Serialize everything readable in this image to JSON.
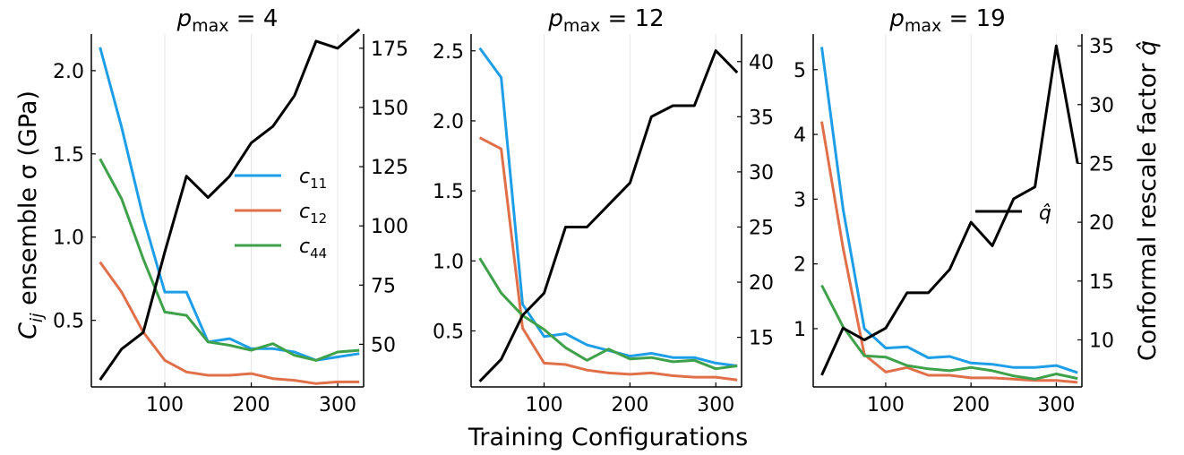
{
  "figure": {
    "xlabel": "Training Configurations",
    "ylabel_left": "C_ij ensemble σ (GPa)",
    "ylabel_right": "Conformal rescale factor q̂"
  },
  "legend": {
    "c11": "c11",
    "c12": "c12",
    "c44": "c44",
    "qhat": "q̂"
  },
  "colors": {
    "c11": "#1f9ee8",
    "c12": "#e0704a",
    "c44": "#3fa14a",
    "qhat": "#000000",
    "grid": "#e6e6e6"
  },
  "chart_data": [
    {
      "type": "line",
      "title": "p_max = 4",
      "title_base": "p",
      "title_sub": "max",
      "title_rest": " = 4",
      "x": [
        25,
        50,
        75,
        100,
        125,
        150,
        175,
        200,
        225,
        250,
        275,
        300,
        325
      ],
      "xlim": [
        15,
        330
      ],
      "xticks": [
        100,
        200,
        300
      ],
      "ylim_left": [
        0.1,
        2.22
      ],
      "yticks_left": [
        0.5,
        1.0,
        1.5,
        2.0
      ],
      "yticks_left_labels": [
        "0.5",
        "1.0",
        "1.5",
        "2.0"
      ],
      "ylim_right": [
        32,
        181
      ],
      "yticks_right": [
        50,
        75,
        100,
        125,
        150,
        175
      ],
      "series_left": [
        {
          "key": "c11",
          "values": [
            2.14,
            1.66,
            1.12,
            0.67,
            0.67,
            0.37,
            0.39,
            0.33,
            0.33,
            0.31,
            0.26,
            0.28,
            0.3
          ]
        },
        {
          "key": "c12",
          "values": [
            0.85,
            0.67,
            0.43,
            0.26,
            0.19,
            0.17,
            0.17,
            0.18,
            0.15,
            0.14,
            0.12,
            0.13,
            0.13
          ]
        },
        {
          "key": "c44",
          "values": [
            1.47,
            1.23,
            0.87,
            0.55,
            0.53,
            0.37,
            0.35,
            0.32,
            0.36,
            0.29,
            0.26,
            0.31,
            0.32
          ]
        }
      ],
      "series_right": [
        {
          "key": "qhat",
          "values": [
            35,
            48,
            55,
            89,
            121,
            112,
            121,
            135,
            142,
            155,
            178,
            175,
            183
          ]
        }
      ]
    },
    {
      "type": "line",
      "title": "p_max = 12",
      "title_base": "p",
      "title_sub": "max",
      "title_rest": " = 12",
      "x": [
        25,
        50,
        75,
        100,
        125,
        150,
        175,
        200,
        225,
        250,
        275,
        300,
        325
      ],
      "xlim": [
        15,
        330
      ],
      "xticks": [
        100,
        200,
        300
      ],
      "ylim_left": [
        0.1,
        2.62
      ],
      "yticks_left": [
        0.5,
        1.0,
        1.5,
        2.0,
        2.5
      ],
      "yticks_left_labels": [
        "0.5",
        "1.0",
        "1.5",
        "2.0",
        "2.5"
      ],
      "ylim_right": [
        10.5,
        42.5
      ],
      "yticks_right": [
        15,
        20,
        25,
        30,
        35,
        40
      ],
      "series_left": [
        {
          "key": "c11",
          "values": [
            2.52,
            2.31,
            0.69,
            0.46,
            0.48,
            0.4,
            0.36,
            0.32,
            0.34,
            0.31,
            0.31,
            0.27,
            0.25
          ]
        },
        {
          "key": "c12",
          "values": [
            1.88,
            1.8,
            0.52,
            0.27,
            0.26,
            0.22,
            0.2,
            0.19,
            0.2,
            0.18,
            0.17,
            0.17,
            0.15
          ]
        },
        {
          "key": "c44",
          "values": [
            1.02,
            0.77,
            0.61,
            0.51,
            0.38,
            0.29,
            0.37,
            0.3,
            0.31,
            0.28,
            0.29,
            0.23,
            0.25
          ]
        }
      ],
      "series_right": [
        {
          "key": "qhat",
          "values": [
            11,
            13,
            17,
            19,
            25,
            25,
            27,
            29,
            35,
            36,
            36,
            41,
            39
          ]
        }
      ]
    },
    {
      "type": "line",
      "title": "p_max = 19",
      "title_base": "p",
      "title_sub": "max",
      "title_rest": " = 19",
      "x": [
        25,
        50,
        75,
        100,
        125,
        150,
        175,
        200,
        225,
        250,
        275,
        300,
        325
      ],
      "xlim": [
        15,
        330
      ],
      "xticks": [
        100,
        200,
        300
      ],
      "ylim_left": [
        0.1,
        5.55
      ],
      "yticks_left": [
        1,
        2,
        3,
        4,
        5
      ],
      "yticks_left_labels": [
        "1",
        "2",
        "3",
        "4",
        "5"
      ],
      "ylim_right": [
        6,
        36
      ],
      "yticks_right": [
        10,
        15,
        20,
        25,
        30,
        35
      ],
      "series_left": [
        {
          "key": "c11",
          "values": [
            5.35,
            2.85,
            1.0,
            0.7,
            0.72,
            0.55,
            0.57,
            0.47,
            0.45,
            0.4,
            0.4,
            0.43,
            0.32
          ]
        },
        {
          "key": "c12",
          "values": [
            4.2,
            2.25,
            0.6,
            0.33,
            0.4,
            0.28,
            0.28,
            0.24,
            0.24,
            0.22,
            0.2,
            0.2,
            0.17
          ]
        },
        {
          "key": "c44",
          "values": [
            1.67,
            1.03,
            0.58,
            0.56,
            0.43,
            0.38,
            0.35,
            0.4,
            0.35,
            0.27,
            0.22,
            0.3,
            0.23
          ]
        }
      ],
      "series_right": [
        {
          "key": "qhat",
          "values": [
            7,
            11,
            10,
            11,
            14,
            14,
            16,
            20,
            18,
            22,
            23,
            35,
            25
          ]
        }
      ]
    }
  ]
}
